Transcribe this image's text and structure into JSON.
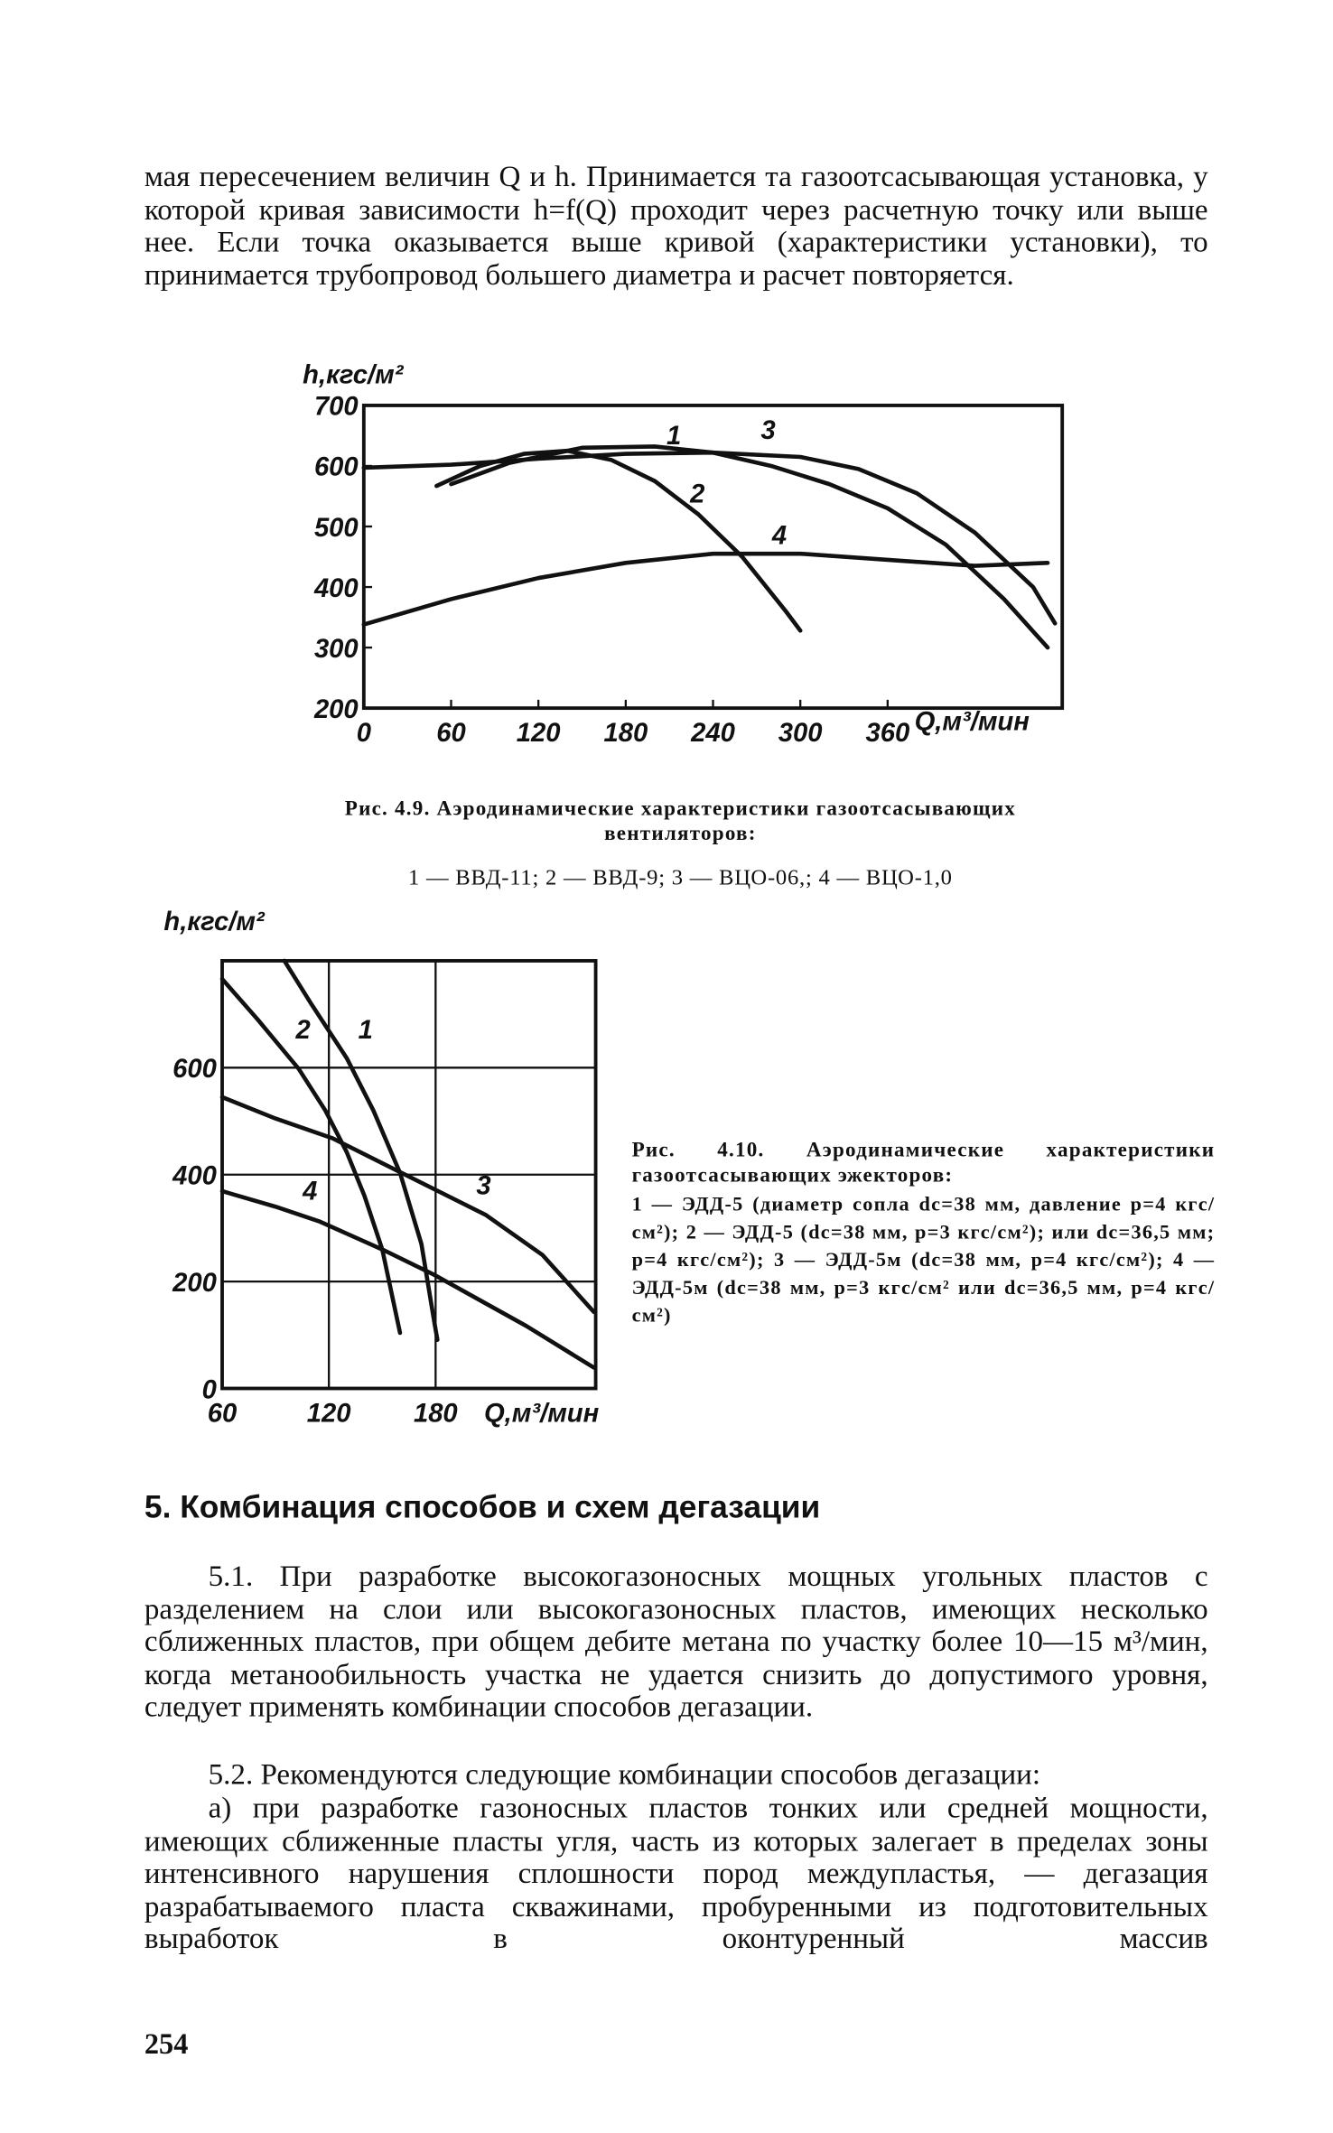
{
  "page": {
    "intro": "мая пересечением величин Q и h. Принимается та газоотсасывающая установка, у которой кривая зависимости h=f(Q) проходит через расчетную точку или выше нее. Если точка оказывается выше кривой (характеристики установки), то принимается трубопровод большего диаметра и расчет повторяется.",
    "fig1_caption": "Рис. 4.9. Аэродинамические характеристики газоотсасывающих вентиляторов:",
    "fig1_legend": "1 — ВВД-11; 2 — ВВД-9; 3 — ВЦО-06,; 4 — ВЦО-1,0",
    "fig2_caption_title": "Рис. 4.10. Аэродинамические характеристики газоотсасывающих эжекторов:",
    "fig2_caption_body": "1 — ЭДД-5 (диаметр сопла dс=38 мм, давление p=4 кгс/см²); 2 — ЭДД-5 (dс=38 мм, p=3 кгс/см²); или dс=36,5 мм; p=4 кгс/см²); 3 — ЭДД-5м (dс=38 мм, p=4 кгс/см²); 4 — ЭДД-5м (dс=38 мм, p=3 кгс/см² или dс=36,5 мм, p=4 кгс/см²)",
    "section_heading": "5. Комбинация способов и схем дегазации",
    "p51": "5.1. При разработке высокогазоносных мощных угольных пластов с разделением на слои или высокогазоносных пластов, имеющих несколько сближенных пластов, при общем дебите метана по участку более 10—15 м³/мин, когда метанообильность участка не удается снизить до допустимого уровня, следует применять комбинации способов дегазации.",
    "p52": "5.2. Рекомендуются следующие комбинации способов дегазации:",
    "p52a": "а) при разработке газоносных пластов тонких или средней мощности, имеющих сближенные пласты угля, часть из которых залегает в пределах зоны интенсивного нарушения сплошности пород междупластья, — дегазация разрабатываемого пласта скважинами, пробуренными из подготовительных выработок в оконтуренный массив",
    "page_number": "254"
  },
  "chart_data": [
    {
      "type": "line",
      "y_label": "h,кгс/м²",
      "x_label": "Q,м³/мин",
      "xlim": [
        0,
        480
      ],
      "xticks": [
        0,
        60,
        120,
        180,
        240,
        300,
        360
      ],
      "ylim": [
        200,
        700
      ],
      "yticks": [
        200,
        300,
        400,
        500,
        600,
        700
      ],
      "grid": false,
      "color": "#111111",
      "series": [
        {
          "name": "1",
          "x": [
            60,
            100,
            150,
            200,
            240,
            280,
            320,
            360,
            400,
            440,
            470
          ],
          "values": [
            570,
            605,
            630,
            632,
            622,
            600,
            570,
            530,
            470,
            380,
            300
          ]
        },
        {
          "name": "2",
          "x": [
            50,
            80,
            110,
            140,
            170,
            200,
            230,
            260,
            290,
            300
          ],
          "values": [
            567,
            600,
            620,
            625,
            610,
            575,
            520,
            450,
            360,
            328
          ]
        },
        {
          "name": "3",
          "x": [
            0,
            60,
            120,
            180,
            240,
            300,
            340,
            380,
            420,
            460,
            475
          ],
          "values": [
            597,
            602,
            612,
            620,
            622,
            615,
            595,
            555,
            490,
            400,
            340
          ]
        },
        {
          "name": "4",
          "x": [
            0,
            60,
            120,
            180,
            240,
            300,
            360,
            420,
            470
          ],
          "values": [
            338,
            380,
            415,
            440,
            455,
            455,
            445,
            435,
            440
          ]
        }
      ]
    },
    {
      "type": "line",
      "y_label": "h,кгс/м²",
      "x_label": "Q,м³/мин",
      "xlim": [
        60,
        270
      ],
      "xticks": [
        60,
        120,
        180
      ],
      "ylim": [
        0,
        800
      ],
      "yticks": [
        0,
        200,
        400,
        600
      ],
      "grid": true,
      "color": "#111111",
      "series": [
        {
          "name": "1",
          "x": [
            95,
            110,
            130,
            145,
            160,
            172,
            179,
            181
          ],
          "values": [
            800,
            720,
            618,
            520,
            403,
            270,
            130,
            91
          ]
        },
        {
          "name": "2",
          "x": [
            60,
            80,
            103,
            118,
            130,
            140,
            150,
            160
          ],
          "values": [
            766,
            690,
            598,
            520,
            442,
            360,
            260,
            104
          ]
        },
        {
          "name": "3",
          "x": [
            60,
            90,
            122,
            161,
            208,
            240,
            269
          ],
          "values": [
            545,
            505,
            468,
            403,
            325,
            250,
            143
          ]
        },
        {
          "name": "4",
          "x": [
            60,
            90,
            115,
            150,
            179,
            231,
            269
          ],
          "values": [
            369,
            340,
            312,
            260,
            213,
            117,
            39
          ]
        }
      ]
    }
  ]
}
